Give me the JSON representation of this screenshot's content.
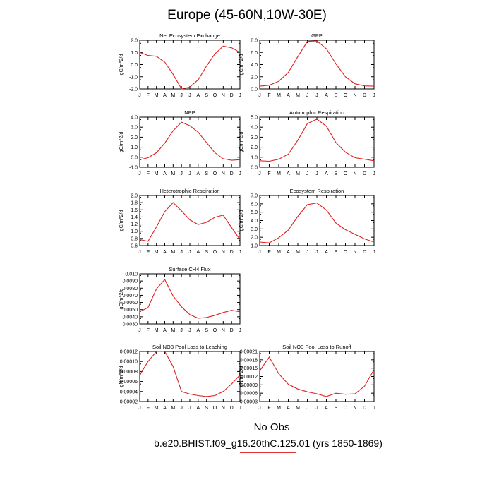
{
  "page": {
    "title": "Europe (45-60N,10W-30E)",
    "legend": "No Obs",
    "case": "b.e20.BHIST.f09_g16.20thC.125.01 (yrs 1850-1869)",
    "line_color": "#e02020"
  },
  "chart_data": [
    {
      "type": "line",
      "title": "Net Ecosystem Exchange",
      "ylabel": "gC/m^2/d",
      "x": [
        "J",
        "F",
        "M",
        "A",
        "M",
        "J",
        "J",
        "A",
        "S",
        "O",
        "N",
        "D",
        "J"
      ],
      "ylim": [
        -2.0,
        2.0
      ],
      "yticks": [
        "2.0",
        "1.0",
        "0.0",
        "-1.0",
        "-2.0"
      ],
      "series": [
        {
          "values": [
            1.0,
            0.75,
            0.68,
            0.2,
            -0.8,
            -2.0,
            -1.85,
            -1.25,
            -0.12,
            0.88,
            1.52,
            1.38,
            1.0
          ]
        }
      ]
    },
    {
      "type": "line",
      "title": "GPP",
      "ylabel": "gC/m^2/d",
      "x": [
        "J",
        "F",
        "M",
        "A",
        "M",
        "J",
        "J",
        "A",
        "S",
        "O",
        "N",
        "D",
        "J"
      ],
      "ylim": [
        0.0,
        8.0
      ],
      "yticks": [
        "8.0",
        "6.0",
        "4.0",
        "2.0",
        "0.0"
      ],
      "series": [
        {
          "values": [
            0.45,
            0.6,
            1.25,
            2.7,
            5.3,
            7.8,
            7.9,
            6.6,
            4.1,
            2.0,
            0.85,
            0.5,
            0.45
          ]
        }
      ]
    },
    {
      "type": "line",
      "title": "NPP",
      "ylabel": "gC/m^2/d",
      "x": [
        "J",
        "F",
        "M",
        "A",
        "M",
        "J",
        "J",
        "A",
        "S",
        "O",
        "N",
        "D",
        "J"
      ],
      "ylim": [
        -1.0,
        4.0
      ],
      "yticks": [
        "4.0",
        "3.0",
        "2.0",
        "1.0",
        "0.0",
        "-1.0"
      ],
      "series": [
        {
          "values": [
            -0.25,
            -0.05,
            0.45,
            1.4,
            2.65,
            3.5,
            3.15,
            2.5,
            1.45,
            0.45,
            -0.15,
            -0.3,
            -0.25
          ]
        }
      ]
    },
    {
      "type": "line",
      "title": "Autotrophic Respiration",
      "ylabel": "gC/m^2/d",
      "x": [
        "J",
        "F",
        "M",
        "A",
        "M",
        "J",
        "J",
        "A",
        "S",
        "O",
        "N",
        "D",
        "J"
      ],
      "ylim": [
        0.0,
        5.0
      ],
      "yticks": [
        "5.0",
        "4.0",
        "3.0",
        "2.0",
        "1.0",
        "0.0"
      ],
      "series": [
        {
          "values": [
            0.65,
            0.6,
            0.8,
            1.3,
            2.7,
            4.35,
            4.8,
            4.1,
            2.45,
            1.5,
            0.95,
            0.8,
            0.65
          ]
        }
      ]
    },
    {
      "type": "line",
      "title": "Heterotrophic Respiration",
      "ylabel": "gC/m^2/d",
      "x": [
        "J",
        "F",
        "M",
        "A",
        "M",
        "J",
        "J",
        "A",
        "S",
        "O",
        "N",
        "D",
        "J"
      ],
      "ylim": [
        0.6,
        2.0
      ],
      "yticks": [
        "2.0",
        "1.8",
        "1.6",
        "1.4",
        "1.2",
        "1.0",
        "0.8",
        "0.6"
      ],
      "series": [
        {
          "values": [
            0.77,
            0.72,
            1.12,
            1.55,
            1.8,
            1.57,
            1.32,
            1.19,
            1.25,
            1.39,
            1.45,
            1.1,
            0.77
          ]
        }
      ]
    },
    {
      "type": "line",
      "title": "Ecosystem Respiration",
      "ylabel": "gC/m^2/d",
      "x": [
        "J",
        "F",
        "M",
        "A",
        "M",
        "J",
        "J",
        "A",
        "S",
        "O",
        "N",
        "D",
        "J"
      ],
      "ylim": [
        1.0,
        7.0
      ],
      "yticks": [
        "7.0",
        "6.0",
        "5.0",
        "4.0",
        "3.0",
        "2.0",
        "1.0"
      ],
      "series": [
        {
          "values": [
            1.42,
            1.32,
            1.95,
            2.85,
            4.5,
            5.9,
            6.1,
            5.25,
            3.7,
            2.9,
            2.35,
            1.8,
            1.42
          ]
        }
      ]
    },
    {
      "type": "line",
      "title": "Surface CH4 Flux",
      "ylabel": "gC/m^2/d",
      "x": [
        "J",
        "F",
        "M",
        "A",
        "M",
        "J",
        "J",
        "A",
        "S",
        "O",
        "N",
        "D",
        "J"
      ],
      "ylim": [
        0.003,
        0.01
      ],
      "yticks": [
        "0.010",
        "0.0090",
        "0.0080",
        "0.0070",
        "0.0060",
        "0.0050",
        "0.0040",
        "0.0030"
      ],
      "series": [
        {
          "values": [
            0.0047,
            0.0053,
            0.0079,
            0.0092,
            0.0069,
            0.0054,
            0.0043,
            0.0038,
            0.0039,
            0.0042,
            0.0046,
            0.0049,
            0.0047
          ]
        }
      ]
    },
    {
      "type": "line",
      "title": "Soil NO3 Pool Loss to Leaching",
      "ylabel": "gN/m^2/d",
      "x": [
        "J",
        "F",
        "M",
        "A",
        "M",
        "J",
        "J",
        "A",
        "S",
        "O",
        "N",
        "D",
        "J"
      ],
      "ylim": [
        2e-05,
        0.00012
      ],
      "yticks": [
        "0.00012",
        "0.00010",
        "0.00008",
        "0.00006",
        "0.00004",
        "0.00002"
      ],
      "series": [
        {
          "values": [
            7.3e-05,
            0.0001,
            0.00012,
            0.00012,
            9e-05,
            4e-05,
            3.5e-05,
            3.2e-05,
            3e-05,
            3.2e-05,
            4e-05,
            5.5e-05,
            7.3e-05
          ]
        }
      ]
    },
    {
      "type": "line",
      "title": "Soil NO3 Pool Loss to Runoff",
      "ylabel": "gN/m^2/d",
      "x": [
        "J",
        "F",
        "M",
        "A",
        "M",
        "J",
        "J",
        "A",
        "S",
        "O",
        "N",
        "D",
        "J"
      ],
      "ylim": [
        3e-05,
        0.00021
      ],
      "yticks": [
        "0.00021",
        "0.00018",
        "0.00015",
        "0.00012",
        "0.00009",
        "0.00006",
        "0.00003"
      ],
      "series": [
        {
          "values": [
            0.00014,
            0.00019,
            0.00013,
            9.2e-05,
            7.5e-05,
            6.5e-05,
            5.8e-05,
            4.8e-05,
            6e-05,
            5.6e-05,
            5.8e-05,
            8.5e-05,
            0.000145
          ]
        }
      ]
    }
  ]
}
